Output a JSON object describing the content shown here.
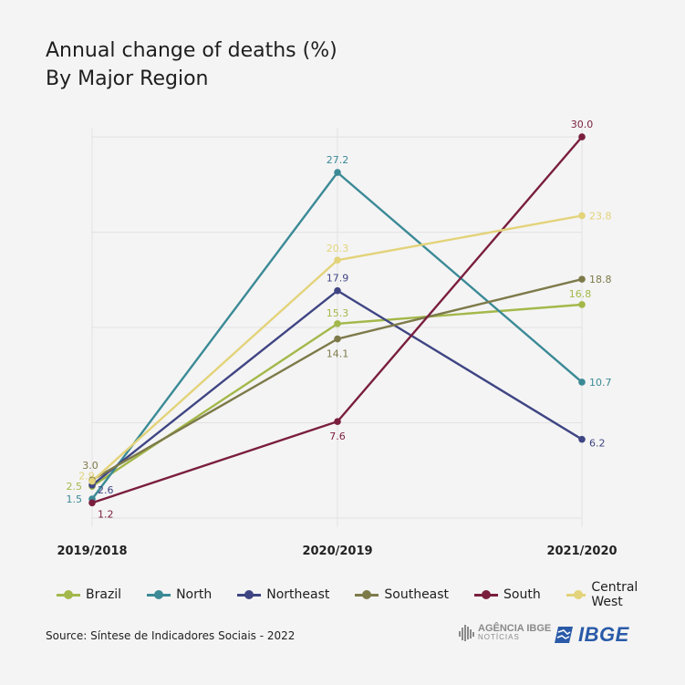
{
  "title": "Annual change of deaths (%)",
  "subtitle": "By Major Region",
  "source": "Source: Síntese de Indicadores Sociais - 2022",
  "logos": {
    "agencia_main": "AGÊNCIA IBGE",
    "agencia_sub": "NOTÍCIAS",
    "ibge": "IBGE"
  },
  "chart_data": {
    "type": "line",
    "title": "Annual change of deaths (%)",
    "subtitle": "By Major Region",
    "categories": [
      "2019/2018",
      "2020/2019",
      "2021/2020"
    ],
    "ylim": [
      0,
      32
    ],
    "grid": true,
    "legend_position": "bottom",
    "series": [
      {
        "name": "Brazil",
        "color": "#a3b84a",
        "values": [
          2.5,
          15.3,
          16.8
        ]
      },
      {
        "name": "North",
        "color": "#3b8a96",
        "values": [
          1.5,
          27.2,
          10.7
        ]
      },
      {
        "name": "Northeast",
        "color": "#3f4583",
        "values": [
          2.6,
          17.9,
          6.2
        ]
      },
      {
        "name": "Southeast",
        "color": "#7d7a4a",
        "values": [
          3.0,
          14.1,
          18.8
        ]
      },
      {
        "name": "South",
        "color": "#7a1e3e",
        "values": [
          1.2,
          7.6,
          30.0
        ]
      },
      {
        "name": "Central West",
        "color": "#e3d37a",
        "values": [
          2.9,
          20.3,
          23.8
        ]
      }
    ]
  }
}
